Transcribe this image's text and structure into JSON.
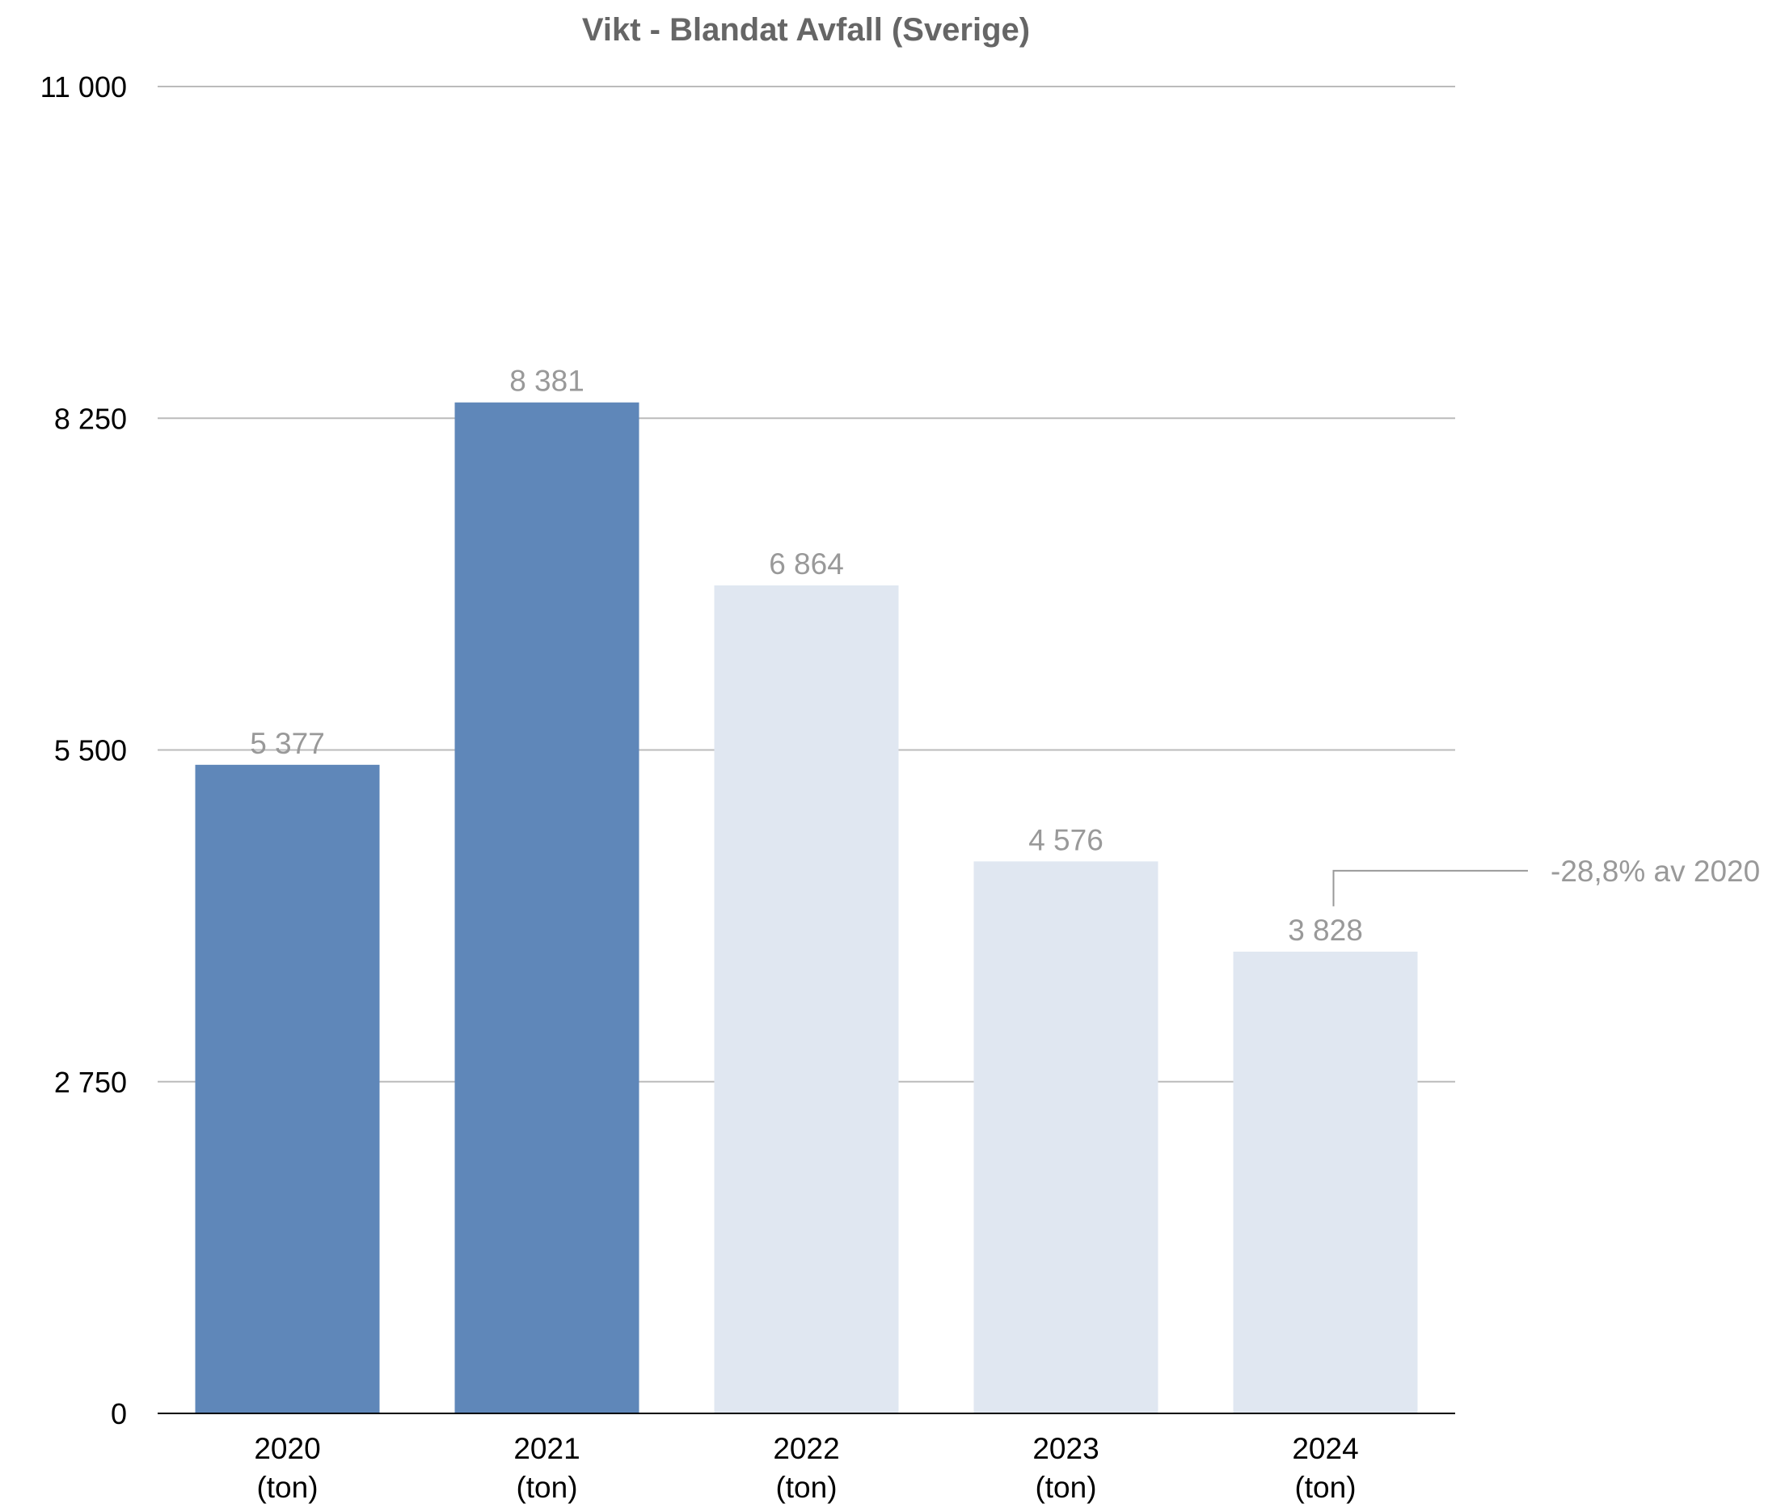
{
  "chart_data": {
    "type": "bar",
    "title": "Vikt - Blandat Avfall (Sverige)",
    "xlabel": "",
    "ylabel": "",
    "categories": [
      [
        "2020",
        "(ton)"
      ],
      [
        "2021",
        "(ton)"
      ],
      [
        "2022",
        "(ton)"
      ],
      [
        "2023",
        "(ton)"
      ],
      [
        "2024",
        "(ton)"
      ]
    ],
    "values": [
      5377,
      8381,
      6864,
      4576,
      3828
    ],
    "value_labels": [
      "5 377",
      "8 381",
      "6 864",
      "4 576",
      "3 828"
    ],
    "ylim": [
      0,
      11000
    ],
    "yticks": [
      0,
      2750,
      5500,
      8250,
      11000
    ],
    "ytick_labels": [
      "0",
      "2 750",
      "5 500",
      "8 250",
      "11 000"
    ],
    "grid": true,
    "legend": "none",
    "colors": {
      "highlight": "#5f87b9",
      "muted": "#e0e7f1",
      "grid": "#bbbbbb",
      "axis": "#000000",
      "label": "#999999",
      "title": "#666666"
    },
    "bar_styles": [
      "highlight",
      "highlight",
      "muted",
      "muted",
      "muted"
    ],
    "annotation": {
      "text": "-28,8% av 2020",
      "category_index": 4
    }
  }
}
